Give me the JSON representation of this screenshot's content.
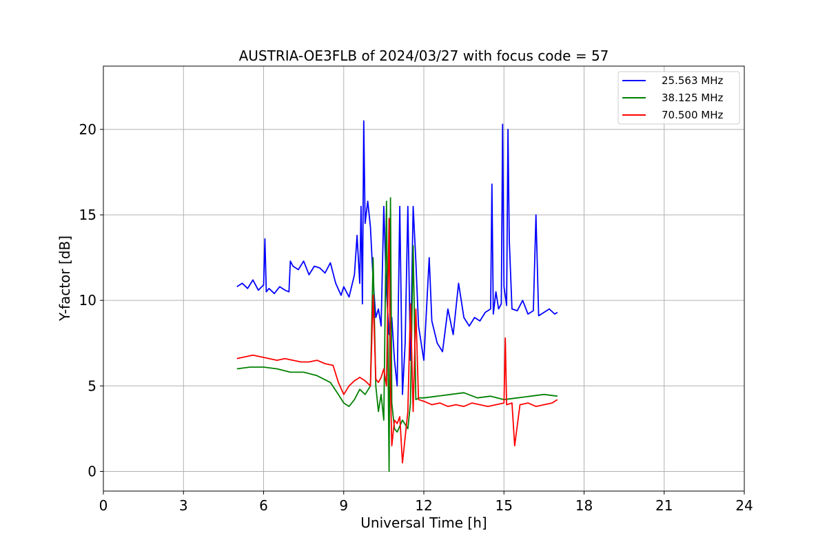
{
  "chart_data": {
    "type": "line",
    "title": "AUSTRIA-OE3FLB of 2024/03/27 with focus code = 57",
    "xlabel": "Universal Time [h]",
    "ylabel": "Y-factor [dB]",
    "xlim": [
      0,
      24
    ],
    "ylim": [
      -1.15,
      23.7
    ],
    "xticks": [
      0,
      3,
      6,
      9,
      12,
      15,
      18,
      21,
      24
    ],
    "yticks": [
      0,
      5,
      10,
      15,
      20
    ],
    "grid": true,
    "legend_position": "top-right",
    "series": [
      {
        "name": "25.563 MHz",
        "color": "#0000ff",
        "x": [
          5.0,
          5.2,
          5.4,
          5.6,
          5.8,
          6.0,
          6.05,
          6.1,
          6.2,
          6.4,
          6.6,
          6.8,
          6.95,
          7.0,
          7.1,
          7.3,
          7.5,
          7.7,
          7.9,
          8.1,
          8.3,
          8.5,
          8.7,
          8.9,
          9.0,
          9.2,
          9.4,
          9.5,
          9.6,
          9.65,
          9.7,
          9.75,
          9.8,
          9.9,
          10.0,
          10.1,
          10.2,
          10.3,
          10.4,
          10.5,
          10.6,
          10.7,
          10.8,
          10.9,
          11.0,
          11.1,
          11.2,
          11.3,
          11.4,
          11.5,
          11.6,
          11.7,
          11.8,
          12.0,
          12.2,
          12.3,
          12.5,
          12.7,
          12.9,
          13.1,
          13.3,
          13.5,
          13.7,
          13.9,
          14.1,
          14.3,
          14.5,
          14.55,
          14.6,
          14.7,
          14.8,
          14.9,
          14.95,
          15.0,
          15.1,
          15.15,
          15.2,
          15.3,
          15.5,
          15.7,
          15.9,
          16.1,
          16.2,
          16.3,
          16.5,
          16.7,
          16.9,
          17.0
        ],
        "y": [
          10.8,
          11.0,
          10.7,
          11.2,
          10.6,
          10.9,
          13.6,
          10.5,
          10.7,
          10.4,
          10.8,
          10.6,
          10.5,
          12.3,
          12.0,
          11.8,
          12.3,
          11.5,
          12.0,
          11.9,
          11.6,
          12.2,
          11.0,
          10.3,
          10.8,
          10.2,
          11.5,
          13.8,
          11.0,
          15.5,
          9.8,
          20.5,
          14.5,
          15.8,
          14.3,
          11.2,
          9.0,
          9.5,
          8.5,
          15.5,
          10.5,
          8.0,
          9.0,
          6.5,
          5.0,
          15.5,
          4.5,
          7.5,
          15.5,
          6.5,
          15.5,
          12.3,
          8.5,
          6.5,
          12.5,
          8.8,
          7.5,
          7.0,
          9.5,
          8.0,
          11.0,
          9.0,
          8.5,
          9.0,
          8.8,
          9.3,
          9.5,
          16.8,
          9.2,
          10.5,
          9.5,
          9.8,
          20.3,
          10.8,
          9.7,
          20.0,
          13.5,
          9.5,
          9.4,
          10.0,
          9.2,
          9.4,
          15.0,
          9.1,
          9.3,
          9.5,
          9.2,
          9.3
        ]
      },
      {
        "name": "38.125 MHz",
        "color": "#008000",
        "x": [
          5.0,
          5.5,
          6.0,
          6.5,
          7.0,
          7.5,
          8.0,
          8.5,
          8.8,
          9.0,
          9.2,
          9.4,
          9.6,
          9.8,
          10.0,
          10.1,
          10.2,
          10.3,
          10.4,
          10.5,
          10.6,
          10.7,
          10.75,
          10.8,
          10.9,
          11.0,
          11.2,
          11.4,
          11.5,
          11.6,
          11.7,
          11.8,
          12.0,
          12.5,
          13.0,
          13.5,
          14.0,
          14.5,
          15.0,
          15.5,
          16.0,
          16.5,
          17.0
        ],
        "y": [
          6.0,
          6.1,
          6.1,
          6.0,
          5.8,
          5.8,
          5.6,
          5.2,
          4.5,
          4.0,
          3.8,
          4.2,
          4.8,
          4.5,
          5.0,
          12.5,
          5.0,
          3.5,
          4.5,
          3.0,
          15.8,
          0.0,
          16.0,
          4.0,
          2.5,
          2.3,
          3.0,
          2.5,
          4.0,
          13.2,
          4.2,
          4.3,
          4.3,
          4.4,
          4.5,
          4.6,
          4.3,
          4.4,
          4.2,
          4.3,
          4.4,
          4.5,
          4.4
        ]
      },
      {
        "name": "70.500 MHz",
        "color": "#ff0000",
        "x": [
          5.0,
          5.3,
          5.6,
          5.9,
          6.2,
          6.5,
          6.8,
          7.1,
          7.4,
          7.7,
          8.0,
          8.3,
          8.6,
          8.8,
          9.0,
          9.2,
          9.4,
          9.6,
          9.8,
          10.0,
          10.1,
          10.2,
          10.3,
          10.4,
          10.5,
          10.6,
          10.7,
          10.75,
          10.8,
          10.9,
          11.0,
          11.1,
          11.2,
          11.4,
          11.5,
          11.6,
          11.7,
          11.8,
          12.0,
          12.3,
          12.6,
          12.9,
          13.2,
          13.5,
          13.8,
          14.1,
          14.4,
          14.7,
          15.0,
          15.05,
          15.1,
          15.3,
          15.4,
          15.6,
          15.9,
          16.2,
          16.5,
          16.8,
          17.0
        ],
        "y": [
          6.6,
          6.7,
          6.8,
          6.7,
          6.6,
          6.5,
          6.6,
          6.5,
          6.4,
          6.4,
          6.5,
          6.3,
          6.2,
          5.2,
          4.5,
          5.0,
          5.3,
          5.5,
          5.3,
          5.0,
          10.3,
          5.4,
          5.2,
          5.5,
          6.0,
          5.0,
          14.8,
          5.0,
          1.5,
          3.0,
          2.8,
          3.2,
          0.5,
          3.5,
          9.8,
          3.5,
          9.5,
          4.2,
          4.1,
          3.9,
          4.0,
          3.8,
          3.9,
          3.8,
          4.0,
          3.9,
          3.8,
          3.9,
          4.0,
          7.8,
          3.9,
          4.0,
          1.5,
          3.9,
          4.0,
          3.8,
          3.9,
          4.0,
          4.2
        ]
      }
    ]
  }
}
